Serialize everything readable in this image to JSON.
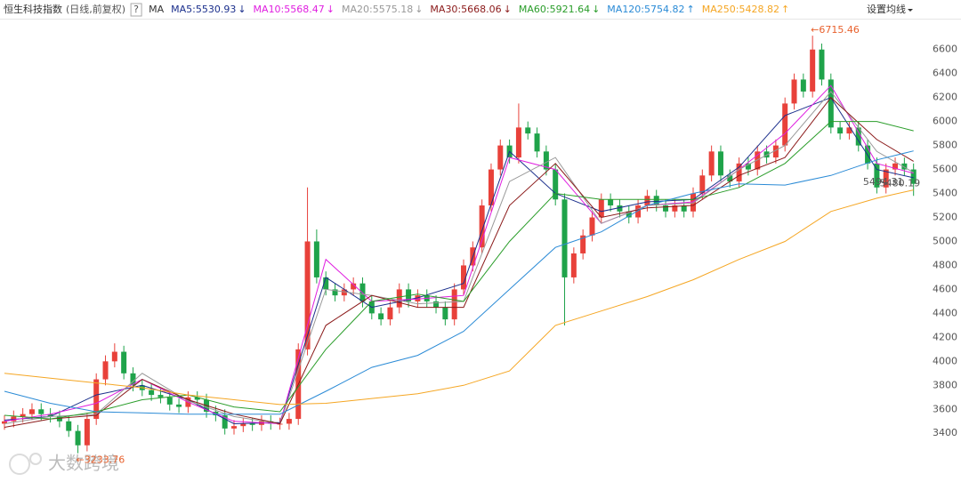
{
  "chart_data": {
    "type": "candlestick",
    "title": "恒生科技指数",
    "subtitle": "(日线,前复权)",
    "help": "?",
    "ma_label": "MA",
    "settings": "设置均线",
    "watermark": "大数跨境",
    "ylim": [
      3120,
      6850
    ],
    "yticks": [
      3400,
      3600,
      3800,
      4000,
      4200,
      4400,
      4600,
      4800,
      5000,
      5200,
      5400,
      5600,
      5800,
      6000,
      6200,
      6400,
      6600
    ],
    "grid": false,
    "up_color": "#e8413a",
    "down_color": "#1fa34a",
    "ohlc": [
      [
        3480,
        3550,
        3430,
        3500
      ],
      [
        3500,
        3590,
        3450,
        3540
      ],
      [
        3540,
        3610,
        3490,
        3560
      ],
      [
        3560,
        3650,
        3510,
        3600
      ],
      [
        3600,
        3650,
        3510,
        3560
      ],
      [
        3560,
        3610,
        3490,
        3540
      ],
      [
        3540,
        3590,
        3450,
        3500
      ],
      [
        3500,
        3550,
        3370,
        3420
      ],
      [
        3420,
        3470,
        3233.76,
        3300
      ],
      [
        3300,
        3570,
        3250,
        3520
      ],
      [
        3520,
        3900,
        3470,
        3850
      ],
      [
        3850,
        4050,
        3800,
        4000
      ],
      [
        4000,
        4150,
        3950,
        4080
      ],
      [
        4080,
        4130,
        3850,
        3900
      ],
      [
        3900,
        3950,
        3750,
        3800
      ],
      [
        3800,
        3850,
        3710,
        3760
      ],
      [
        3760,
        3810,
        3670,
        3720
      ],
      [
        3720,
        3770,
        3650,
        3700
      ],
      [
        3700,
        3750,
        3590,
        3640
      ],
      [
        3640,
        3690,
        3570,
        3620
      ],
      [
        3620,
        3750,
        3570,
        3700
      ],
      [
        3700,
        3750,
        3630,
        3680
      ],
      [
        3680,
        3730,
        3530,
        3580
      ],
      [
        3580,
        3630,
        3500,
        3550
      ],
      [
        3550,
        3600,
        3390,
        3440
      ],
      [
        3440,
        3510,
        3390,
        3460
      ],
      [
        3460,
        3530,
        3410,
        3480
      ],
      [
        3480,
        3530,
        3420,
        3470
      ],
      [
        3470,
        3550,
        3420,
        3500
      ],
      [
        3500,
        3550,
        3430,
        3480
      ],
      [
        3480,
        3530,
        3430,
        3480
      ],
      [
        3480,
        3570,
        3430,
        3520
      ],
      [
        3520,
        4150,
        3470,
        4100
      ],
      [
        4100,
        5450,
        4050,
        5000
      ],
      [
        5000,
        5100,
        4650,
        4700
      ],
      [
        4700,
        4750,
        4550,
        4600
      ],
      [
        4600,
        4650,
        4500,
        4550
      ],
      [
        4550,
        4650,
        4500,
        4600
      ],
      [
        4600,
        4700,
        4550,
        4650
      ],
      [
        4650,
        4700,
        4450,
        4500
      ],
      [
        4500,
        4550,
        4350,
        4400
      ],
      [
        4400,
        4450,
        4300,
        4350
      ],
      [
        4350,
        4500,
        4300,
        4450
      ],
      [
        4450,
        4650,
        4400,
        4600
      ],
      [
        4600,
        4650,
        4450,
        4500
      ],
      [
        4500,
        4600,
        4450,
        4550
      ],
      [
        4550,
        4600,
        4450,
        4500
      ],
      [
        4500,
        4550,
        4400,
        4450
      ],
      [
        4450,
        4500,
        4300,
        4350
      ],
      [
        4350,
        4650,
        4300,
        4600
      ],
      [
        4600,
        4850,
        4550,
        4800
      ],
      [
        4800,
        5000,
        4750,
        4950
      ],
      [
        4950,
        5350,
        4900,
        5300
      ],
      [
        5300,
        5650,
        5250,
        5600
      ],
      [
        5600,
        5850,
        5550,
        5800
      ],
      [
        5800,
        5850,
        5650,
        5700
      ],
      [
        5700,
        6150,
        5650,
        5950
      ],
      [
        5950,
        6000,
        5850,
        5900
      ],
      [
        5900,
        5950,
        5700,
        5750
      ],
      [
        5750,
        5800,
        5550,
        5600
      ],
      [
        5600,
        5650,
        5300,
        5350
      ],
      [
        5350,
        5400,
        4300,
        4700
      ],
      [
        4700,
        4950,
        4650,
        4900
      ],
      [
        4900,
        5100,
        4850,
        5050
      ],
      [
        5050,
        5250,
        5000,
        5200
      ],
      [
        5200,
        5400,
        5150,
        5350
      ],
      [
        5350,
        5400,
        5250,
        5300
      ],
      [
        5300,
        5350,
        5200,
        5250
      ],
      [
        5250,
        5300,
        5150,
        5200
      ],
      [
        5200,
        5350,
        5150,
        5300
      ],
      [
        5300,
        5430,
        5250,
        5380
      ],
      [
        5380,
        5430,
        5250,
        5300
      ],
      [
        5300,
        5350,
        5200,
        5250
      ],
      [
        5250,
        5350,
        5200,
        5300
      ],
      [
        5300,
        5350,
        5200,
        5250
      ],
      [
        5250,
        5450,
        5200,
        5400
      ],
      [
        5400,
        5600,
        5350,
        5550
      ],
      [
        5550,
        5800,
        5500,
        5750
      ],
      [
        5750,
        5800,
        5500,
        5550
      ],
      [
        5550,
        5600,
        5450,
        5500
      ],
      [
        5500,
        5700,
        5450,
        5650
      ],
      [
        5650,
        5700,
        5550,
        5600
      ],
      [
        5600,
        5800,
        5550,
        5750
      ],
      [
        5750,
        5800,
        5650,
        5700
      ],
      [
        5700,
        5850,
        5650,
        5800
      ],
      [
        5800,
        6200,
        5750,
        6150
      ],
      [
        6150,
        6400,
        6100,
        6350
      ],
      [
        6350,
        6400,
        6200,
        6250
      ],
      [
        6250,
        6715.46,
        6200,
        6600
      ],
      [
        6600,
        6650,
        6300,
        6350
      ],
      [
        6350,
        6400,
        5900,
        5950
      ],
      [
        5950,
        6000,
        5850,
        5900
      ],
      [
        5900,
        6000,
        5850,
        5950
      ],
      [
        5950,
        6000,
        5750,
        5800
      ],
      [
        5800,
        5850,
        5600,
        5650
      ],
      [
        5650,
        5700,
        5400,
        5450
      ],
      [
        5450,
        5650,
        5400,
        5600
      ],
      [
        5600,
        5700,
        5550,
        5650
      ],
      [
        5650,
        5700,
        5550,
        5600
      ],
      [
        5600,
        5650,
        5380,
        5480.19
      ]
    ],
    "ma_x": [
      0,
      5,
      10,
      15,
      20,
      25,
      30,
      35,
      40,
      45,
      50,
      55,
      60,
      65,
      70,
      75,
      80,
      85,
      90,
      95,
      99
    ],
    "series": [
      {
        "name": "MA5:5530.93",
        "arrow": "↓",
        "color": "#1b2f8c",
        "values": [
          3510,
          3540,
          3720,
          3800,
          3680,
          3480,
          3490,
          4700,
          4450,
          4530,
          4650,
          5750,
          5400,
          5250,
          5330,
          5350,
          5620,
          6050,
          6200,
          5600,
          5531
        ]
      },
      {
        "name": "MA10:5568.47",
        "arrow": "↓",
        "color": "#e01fe0",
        "values": [
          3500,
          3560,
          3650,
          3850,
          3660,
          3500,
          3480,
          4850,
          4500,
          4520,
          4550,
          5700,
          5600,
          5150,
          5300,
          5330,
          5600,
          5900,
          6300,
          5650,
          5568
        ]
      },
      {
        "name": "MA20:5575.18",
        "arrow": "↓",
        "color": "#999999",
        "values": [
          3480,
          3540,
          3560,
          3900,
          3670,
          3540,
          3480,
          4600,
          4550,
          4480,
          4500,
          5500,
          5700,
          5150,
          5300,
          5320,
          5600,
          5800,
          6250,
          5750,
          5575
        ]
      },
      {
        "name": "MA30:5668.06",
        "arrow": "↓",
        "color": "#8b1a1a",
        "values": [
          3450,
          3520,
          3550,
          3850,
          3680,
          3560,
          3480,
          4300,
          4550,
          4450,
          4450,
          5300,
          5650,
          5200,
          5280,
          5300,
          5550,
          5700,
          6200,
          5850,
          5668
        ]
      },
      {
        "name": "MA60:5921.64",
        "arrow": "↓",
        "color": "#2a9d2a",
        "values": [
          3550,
          3520,
          3580,
          3680,
          3720,
          3620,
          3580,
          4100,
          4500,
          4560,
          4500,
          5000,
          5400,
          5350,
          5350,
          5350,
          5450,
          5650,
          6000,
          6000,
          5922
        ]
      },
      {
        "name": "MA120:5754.82",
        "arrow": "↑",
        "color": "#2b8bd6",
        "values": [
          3750,
          3650,
          3580,
          3570,
          3560,
          3560,
          3560,
          3750,
          3950,
          4050,
          4250,
          4600,
          4950,
          5080,
          5300,
          5400,
          5480,
          5470,
          5550,
          5680,
          5755
        ]
      },
      {
        "name": "MA250:5428.82",
        "arrow": "↑",
        "color": "#f5a623",
        "values": [
          3900,
          3860,
          3820,
          3780,
          3720,
          3680,
          3640,
          3650,
          3690,
          3730,
          3800,
          3920,
          4300,
          4420,
          4540,
          4680,
          4850,
          5000,
          5250,
          5360,
          5429
        ]
      }
    ],
    "annotations": [
      {
        "label": "←6715.46",
        "value": 6715.46,
        "index": 88
      },
      {
        "label": "←3233.76",
        "value": 3233.76,
        "index": 8
      },
      {
        "label": "5494.31",
        "value": 5494.31,
        "index": 95
      },
      {
        "label": "5480.19",
        "value": 5480.19,
        "index": 99
      }
    ]
  }
}
